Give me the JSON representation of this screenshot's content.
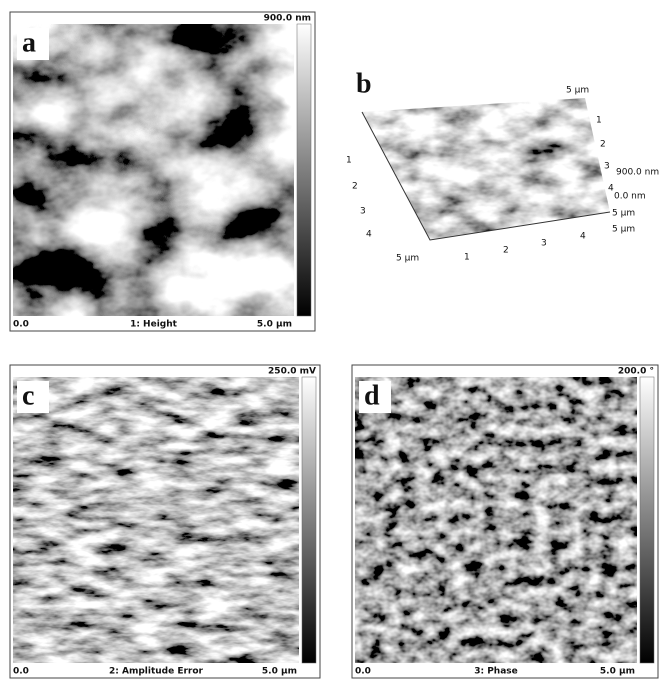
{
  "panels": [
    {
      "label": "a",
      "scale_max": "900.0 nm",
      "x_min": "0.0",
      "caption": "1: Height",
      "x_max": "5.0 µm"
    },
    {
      "label": "c",
      "scale_max": "250.0 mV",
      "x_min": "0.0",
      "caption": "2: Amplitude Error",
      "x_max": "5.0 µm"
    },
    {
      "label": "d",
      "scale_max": "200.0 °",
      "x_min": "0.0",
      "caption": "3: Phase",
      "x_max": "5.0 µm"
    }
  ],
  "panel_3d": {
    "label": "b",
    "top_axis": "5 µm",
    "right_axis": [
      "1",
      "2",
      "3",
      "4"
    ],
    "left_axis": [
      "1",
      "2",
      "3",
      "4",
      "5 µm"
    ],
    "bottom_axis": [
      "1",
      "2",
      "3",
      "4",
      "5 µm"
    ],
    "z_max": "900.0 nm",
    "z_zero": "0.0 nm",
    "z_end": "5 µm",
    "x_end": "5 µm"
  }
}
